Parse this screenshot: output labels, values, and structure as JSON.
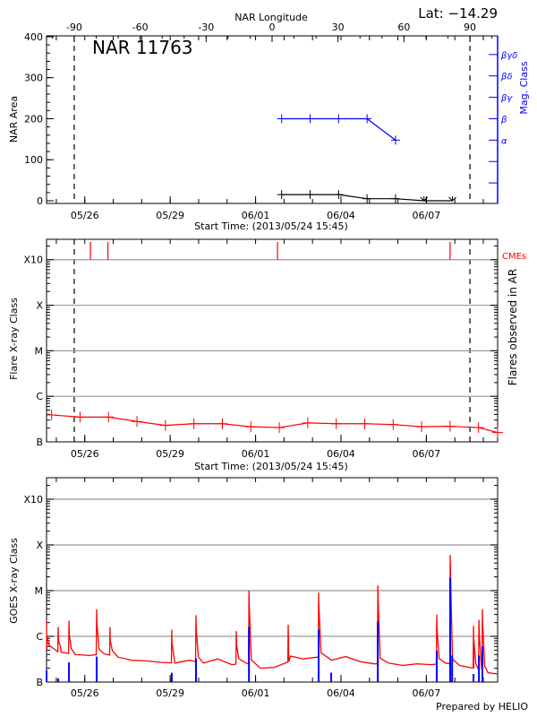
{
  "header": {
    "lat_label": "Lat: −14.29",
    "credit": "Prepared by HELIO"
  },
  "colors": {
    "axis": "#000000",
    "mag": "#0000ff",
    "flare": "#ff0000",
    "grid": "#999999",
    "goes_long": "#ff0000",
    "goes_short": "#0000ff"
  },
  "chart_data": [
    {
      "type": "line",
      "title": "NAR 11763",
      "top_axis_label": "NAR Longitude",
      "top_ticks": [
        "-90",
        "-60",
        "-30",
        "0",
        "30",
        "60",
        "90"
      ],
      "top_tick_values": [
        -90,
        -60,
        -30,
        0,
        30,
        60,
        90
      ],
      "top_xlim": [
        -102.6,
        102.6
      ],
      "limb_longitudes": [
        -90,
        90
      ],
      "xlabel": "Start Time: (2013/05/24 15:45)",
      "xlim": [
        "2013-05-24T15:45",
        "2013-06-09T12:05"
      ],
      "date_ticks": [
        {
          "label": "05/26",
          "date": "2013-05-26T00:00"
        },
        {
          "label": "05/29",
          "date": "2013-05-29T00:00"
        },
        {
          "label": "06/01",
          "date": "2013-06-01T00:00"
        },
        {
          "label": "06/04",
          "date": "2013-06-04T00:00"
        },
        {
          "label": "06/07",
          "date": "2013-06-07T00:00"
        }
      ],
      "ylabel": "NAR Area",
      "ylim": [
        -6.6,
        402
      ],
      "y_ticks": [
        "0",
        "100",
        "200",
        "300",
        "400"
      ],
      "y_tick_values": [
        0,
        100,
        200,
        300,
        400
      ],
      "right_ylabel": "Mag. Class",
      "mag_levels": [
        {
          "label": "",
          "index": 1
        },
        {
          "label": "",
          "index": 2
        },
        {
          "label": "α",
          "index": 3
        },
        {
          "label": "β",
          "index": 4
        },
        {
          "label": "βγ",
          "index": 5
        },
        {
          "label": "βδ",
          "index": 6
        },
        {
          "label": "βγδ",
          "index": 7
        }
      ],
      "mag_ylim": [
        0,
        7.83
      ],
      "series": [
        {
          "key": "area",
          "dates": [
            "2013-06-01T22:00",
            "2013-06-02T22:00",
            "2013-06-03T22:00",
            "2013-06-04T22:00",
            "2013-06-05T22:00",
            "2013-06-06T22:00",
            "2013-06-07T22:00"
          ],
          "values": [
            15,
            15,
            15,
            5,
            5,
            0,
            0
          ]
        },
        {
          "key": "mag_class",
          "dates": [
            "2013-06-01T22:00",
            "2013-06-02T22:00",
            "2013-06-03T22:00",
            "2013-06-04T22:00",
            "2013-06-05T22:00"
          ],
          "values": [
            "β",
            "β",
            "β",
            "β",
            "α"
          ]
        }
      ]
    },
    {
      "type": "line",
      "xlabel": "Start Time: (2013/05/24 15:45)",
      "ylabel": "Flare X-ray Class",
      "right_ylabel": "Flares observed in AR",
      "cme_label": "CMEs",
      "yscale": "log",
      "ylim_flux": [
        1e-07,
        0.0028
      ],
      "y_ticks": [
        {
          "label": "B",
          "flux": 1e-07
        },
        {
          "label": "C",
          "flux": 1e-06
        },
        {
          "label": "M",
          "flux": 1e-05
        },
        {
          "label": "X",
          "flux": 0.0001
        },
        {
          "label": "X10",
          "flux": 0.001
        }
      ],
      "grid": true,
      "cme_dates": [
        "2013-05-26T04:45",
        "2013-05-26T19:30",
        "2013-06-01T18:30",
        "2013-06-07T20:00"
      ],
      "series": [
        {
          "key": "flare_level",
          "dates": [
            "2013-05-24T20:00",
            "2013-05-25T20:00",
            "2013-05-26T20:00",
            "2013-05-27T20:00",
            "2013-05-28T20:00",
            "2013-05-29T20:00",
            "2013-05-30T20:00",
            "2013-05-31T20:00",
            "2013-06-01T20:00",
            "2013-06-02T20:00",
            "2013-06-03T20:00",
            "2013-06-04T20:00",
            "2013-06-05T20:00",
            "2013-06-06T20:00",
            "2013-06-07T20:00",
            "2013-06-08T20:00",
            "2013-06-09T12:05"
          ],
          "values": [
            3.9e-07,
            3.5e-07,
            3.5e-07,
            2.8e-07,
            2.3e-07,
            2.5e-07,
            2.5e-07,
            2.15e-07,
            2.06e-07,
            2.6e-07,
            2.5e-07,
            2.5e-07,
            2.4e-07,
            2.15e-07,
            2.2e-07,
            2.06e-07,
            1.6e-07
          ]
        }
      ]
    },
    {
      "type": "line",
      "ylabel": "GOES X-ray Class",
      "yscale": "log",
      "ylim_flux": [
        1e-07,
        0.00295
      ],
      "y_ticks": [
        {
          "label": "B",
          "flux": 1e-07
        },
        {
          "label": "C",
          "flux": 1e-06
        },
        {
          "label": "M",
          "flux": 1e-05
        },
        {
          "label": "X",
          "flux": 0.0001
        },
        {
          "label": "X10",
          "flux": 0.001
        }
      ],
      "grid": true,
      "long_channel": {
        "background_dates": [
          "2013-05-24T16:00",
          "2013-05-25T04:00",
          "2013-05-25T16:00",
          "2013-05-26T04:00",
          "2013-05-26T16:00",
          "2013-05-27T04:00",
          "2013-05-27T16:00",
          "2013-05-28T04:00",
          "2013-05-28T16:00",
          "2013-05-29T04:00",
          "2013-05-29T16:00",
          "2013-05-30T04:00",
          "2013-05-30T16:00",
          "2013-05-31T04:00",
          "2013-05-31T16:00",
          "2013-06-01T04:00",
          "2013-06-01T16:00",
          "2013-06-02T04:00",
          "2013-06-02T16:00",
          "2013-06-03T04:00",
          "2013-06-03T16:00",
          "2013-06-04T04:00",
          "2013-06-04T16:00",
          "2013-06-05T04:00",
          "2013-06-05T16:00",
          "2013-06-06T04:00",
          "2013-06-06T16:00",
          "2013-06-07T04:00",
          "2013-06-07T16:00",
          "2013-06-08T04:00",
          "2013-06-08T16:00",
          "2013-06-09T04:00",
          "2013-06-09T12:00"
        ],
        "background_values": [
          5e-07,
          4.5e-07,
          4e-07,
          3.8e-07,
          4.2e-07,
          3.5e-07,
          3e-07,
          2.9e-07,
          2.7e-07,
          2.6e-07,
          3e-07,
          2.6e-07,
          3.2e-07,
          2.4e-07,
          2.6e-07,
          2e-07,
          2.1e-07,
          2.8e-07,
          3.2e-07,
          3.5e-07,
          3e-07,
          3.6e-07,
          2.8e-07,
          2.5e-07,
          2.6e-07,
          2.3e-07,
          2.5e-07,
          2.4e-07,
          2.6e-07,
          2.3e-07,
          2e-07,
          1.6e-07,
          1.5e-07
        ],
        "peak_dates": [
          "2013-05-24T15:45",
          "2013-05-25T01:35",
          "2013-05-25T10:40",
          "2013-05-26T10:00",
          "2013-05-26T21:15",
          "2013-05-29T01:20",
          "2013-05-29T21:45",
          "2013-05-31T07:45",
          "2013-05-31T18:25",
          "2013-06-02T03:30",
          "2013-06-03T05:10",
          "2013-06-05T07:05",
          "2013-06-07T08:45",
          "2013-06-07T20:05",
          "2013-06-08T15:45",
          "2013-06-08T20:20",
          "2013-06-08T23:15"
        ],
        "peak_values": [
          2.1e-06,
          1.6e-06,
          2.2e-06,
          3.9e-06,
          1.6e-06,
          1.4e-06,
          2.9e-06,
          1.3e-06,
          1e-05,
          1.8e-06,
          9e-06,
          1.3e-05,
          3e-06,
          6e-05,
          1.7e-06,
          2.3e-06,
          3.9e-06
        ]
      },
      "short_channel": {
        "dates": [
          "2013-05-24T15:45",
          "2013-05-25T01:35",
          "2013-05-25T10:40",
          "2013-05-26T10:00",
          "2013-05-29T01:20",
          "2013-05-29T21:45",
          "2013-05-31T18:25",
          "2013-06-03T05:10",
          "2013-06-03T15:45",
          "2013-06-05T07:05",
          "2013-06-07T08:45",
          "2013-06-07T20:05",
          "2013-06-07T21:45",
          "2013-06-08T15:45",
          "2013-06-08T20:20",
          "2013-06-08T23:15"
        ],
        "values": [
          1.8e-07,
          1.2e-07,
          2.7e-07,
          3.6e-07,
          1.6e-07,
          3.3e-07,
          1.6e-06,
          1.4e-06,
          1.6e-07,
          2.1e-06,
          4.8e-07,
          1.9e-05,
          3.8e-07,
          1.5e-07,
          3.8e-07,
          6e-07
        ]
      }
    }
  ]
}
